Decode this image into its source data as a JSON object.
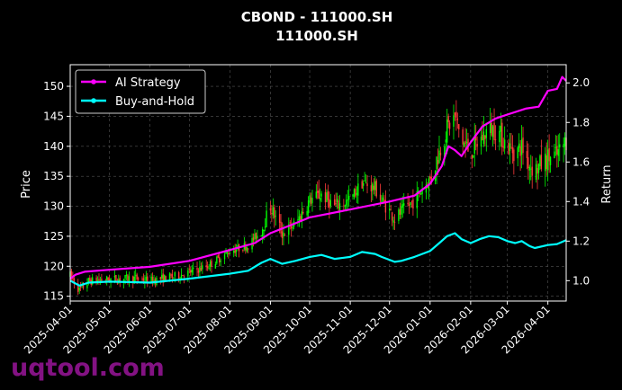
{
  "chart_data": {
    "type": "line",
    "title": "CBOND - 111000.SH",
    "subtitle": "111000.SH",
    "xlabel": "",
    "ylabel_left": "Price",
    "ylabel_right": "Return",
    "watermark": "uqtool.com",
    "x_ticks": [
      "2025-04-01",
      "2025-05-01",
      "2025-06-01",
      "2025-07-01",
      "2025-08-01",
      "2025-09-01",
      "2025-10-01",
      "2025-11-01",
      "2025-12-01",
      "2026-01-01",
      "2026-02-01",
      "2026-03-01",
      "2026-04-01"
    ],
    "x_range": [
      "2025-04-01",
      "2026-04-15"
    ],
    "y_left_ticks": [
      115,
      120,
      125,
      130,
      135,
      140,
      145,
      150
    ],
    "y_left_range": [
      114.2,
      153.6
    ],
    "y_right_ticks": [
      1.0,
      1.2,
      1.4,
      1.6,
      1.8,
      2.0
    ],
    "y_right_range": [
      0.897,
      2.092
    ],
    "grid": true,
    "legend_position": "top-left",
    "colors": {
      "ai": "#ff00ff",
      "bh": "#00ffff",
      "up": "#00ff00",
      "down": "#ff3b3b"
    },
    "price_key_points": [
      [
        "2025-04-01",
        118.5
      ],
      [
        "2025-04-08",
        116.0
      ],
      [
        "2025-04-15",
        117.5
      ],
      [
        "2025-05-01",
        117.8
      ],
      [
        "2025-05-20",
        118.0
      ],
      [
        "2025-06-01",
        117.6
      ],
      [
        "2025-06-20",
        118.3
      ],
      [
        "2025-07-01",
        119.0
      ],
      [
        "2025-07-15",
        120.0
      ],
      [
        "2025-08-01",
        122.5
      ],
      [
        "2025-08-15",
        123.5
      ],
      [
        "2025-08-25",
        126.0
      ],
      [
        "2025-09-01",
        130.0
      ],
      [
        "2025-09-05",
        128.0
      ],
      [
        "2025-09-10",
        125.5
      ],
      [
        "2025-09-20",
        127.0
      ],
      [
        "2025-10-01",
        131.0
      ],
      [
        "2025-10-10",
        132.0
      ],
      [
        "2025-10-20",
        130.0
      ],
      [
        "2025-11-01",
        131.0
      ],
      [
        "2025-11-10",
        134.0
      ],
      [
        "2025-11-20",
        133.0
      ],
      [
        "2025-11-25",
        131.0
      ],
      [
        "2025-12-05",
        128.0
      ],
      [
        "2025-12-10",
        129.0
      ],
      [
        "2025-12-20",
        131.0
      ],
      [
        "2025-12-28",
        133.5
      ],
      [
        "2026-01-01",
        134.5
      ],
      [
        "2026-01-08",
        139.0
      ],
      [
        "2026-01-14",
        143.0
      ],
      [
        "2026-01-20",
        145.0
      ],
      [
        "2026-01-25",
        141.0
      ],
      [
        "2026-02-01",
        139.0
      ],
      [
        "2026-02-08",
        141.0
      ],
      [
        "2026-02-15",
        143.0
      ],
      [
        "2026-02-22",
        142.5
      ],
      [
        "2026-03-01",
        140.0
      ],
      [
        "2026-03-07",
        139.0
      ],
      [
        "2026-03-12",
        140.0
      ],
      [
        "2026-03-18",
        137.0
      ],
      [
        "2026-03-22",
        136.0
      ],
      [
        "2026-04-01",
        138.0
      ],
      [
        "2026-04-08",
        138.5
      ],
      [
        "2026-04-15",
        141.0
      ]
    ],
    "series": [
      {
        "name": "AI Strategy",
        "points": [
          [
            "2025-04-01",
            1.01
          ],
          [
            "2025-04-05",
            1.03
          ],
          [
            "2025-04-12",
            1.045
          ],
          [
            "2025-05-01",
            1.055
          ],
          [
            "2025-06-01",
            1.07
          ],
          [
            "2025-07-01",
            1.1
          ],
          [
            "2025-08-01",
            1.155
          ],
          [
            "2025-08-20",
            1.19
          ],
          [
            "2025-09-01",
            1.24
          ],
          [
            "2025-09-20",
            1.29
          ],
          [
            "2025-10-01",
            1.32
          ],
          [
            "2025-11-01",
            1.36
          ],
          [
            "2025-12-01",
            1.4
          ],
          [
            "2025-12-20",
            1.43
          ],
          [
            "2026-01-01",
            1.49
          ],
          [
            "2026-01-10",
            1.58
          ],
          [
            "2026-01-15",
            1.68
          ],
          [
            "2026-01-20",
            1.66
          ],
          [
            "2026-01-25",
            1.63
          ],
          [
            "2026-02-01",
            1.7
          ],
          [
            "2026-02-10",
            1.78
          ],
          [
            "2026-02-20",
            1.82
          ],
          [
            "2026-03-01",
            1.84
          ],
          [
            "2026-03-15",
            1.87
          ],
          [
            "2026-03-25",
            1.88
          ],
          [
            "2026-04-01",
            1.96
          ],
          [
            "2026-04-08",
            1.97
          ],
          [
            "2026-04-12",
            2.03
          ],
          [
            "2026-04-15",
            2.01
          ]
        ]
      },
      {
        "name": "Buy-and-Hold",
        "points": [
          [
            "2025-04-01",
            1.0
          ],
          [
            "2025-04-08",
            0.975
          ],
          [
            "2025-04-15",
            0.99
          ],
          [
            "2025-05-01",
            0.995
          ],
          [
            "2025-06-01",
            0.99
          ],
          [
            "2025-07-01",
            1.01
          ],
          [
            "2025-08-01",
            1.035
          ],
          [
            "2025-08-15",
            1.05
          ],
          [
            "2025-08-25",
            1.09
          ],
          [
            "2025-09-01",
            1.11
          ],
          [
            "2025-09-10",
            1.085
          ],
          [
            "2025-09-20",
            1.1
          ],
          [
            "2025-10-01",
            1.12
          ],
          [
            "2025-10-10",
            1.13
          ],
          [
            "2025-10-20",
            1.11
          ],
          [
            "2025-11-01",
            1.12
          ],
          [
            "2025-11-10",
            1.145
          ],
          [
            "2025-11-20",
            1.135
          ],
          [
            "2025-11-25",
            1.12
          ],
          [
            "2025-12-05",
            1.095
          ],
          [
            "2025-12-10",
            1.1
          ],
          [
            "2025-12-20",
            1.12
          ],
          [
            "2025-12-28",
            1.14
          ],
          [
            "2026-01-01",
            1.15
          ],
          [
            "2026-01-08",
            1.19
          ],
          [
            "2026-01-14",
            1.225
          ],
          [
            "2026-01-20",
            1.24
          ],
          [
            "2026-01-25",
            1.21
          ],
          [
            "2026-02-01",
            1.19
          ],
          [
            "2026-02-08",
            1.21
          ],
          [
            "2026-02-15",
            1.225
          ],
          [
            "2026-02-22",
            1.22
          ],
          [
            "2026-03-01",
            1.2
          ],
          [
            "2026-03-07",
            1.19
          ],
          [
            "2026-03-12",
            1.2
          ],
          [
            "2026-03-18",
            1.175
          ],
          [
            "2026-03-22",
            1.165
          ],
          [
            "2026-04-01",
            1.18
          ],
          [
            "2026-04-08",
            1.185
          ],
          [
            "2026-04-15",
            1.205
          ]
        ]
      }
    ]
  }
}
